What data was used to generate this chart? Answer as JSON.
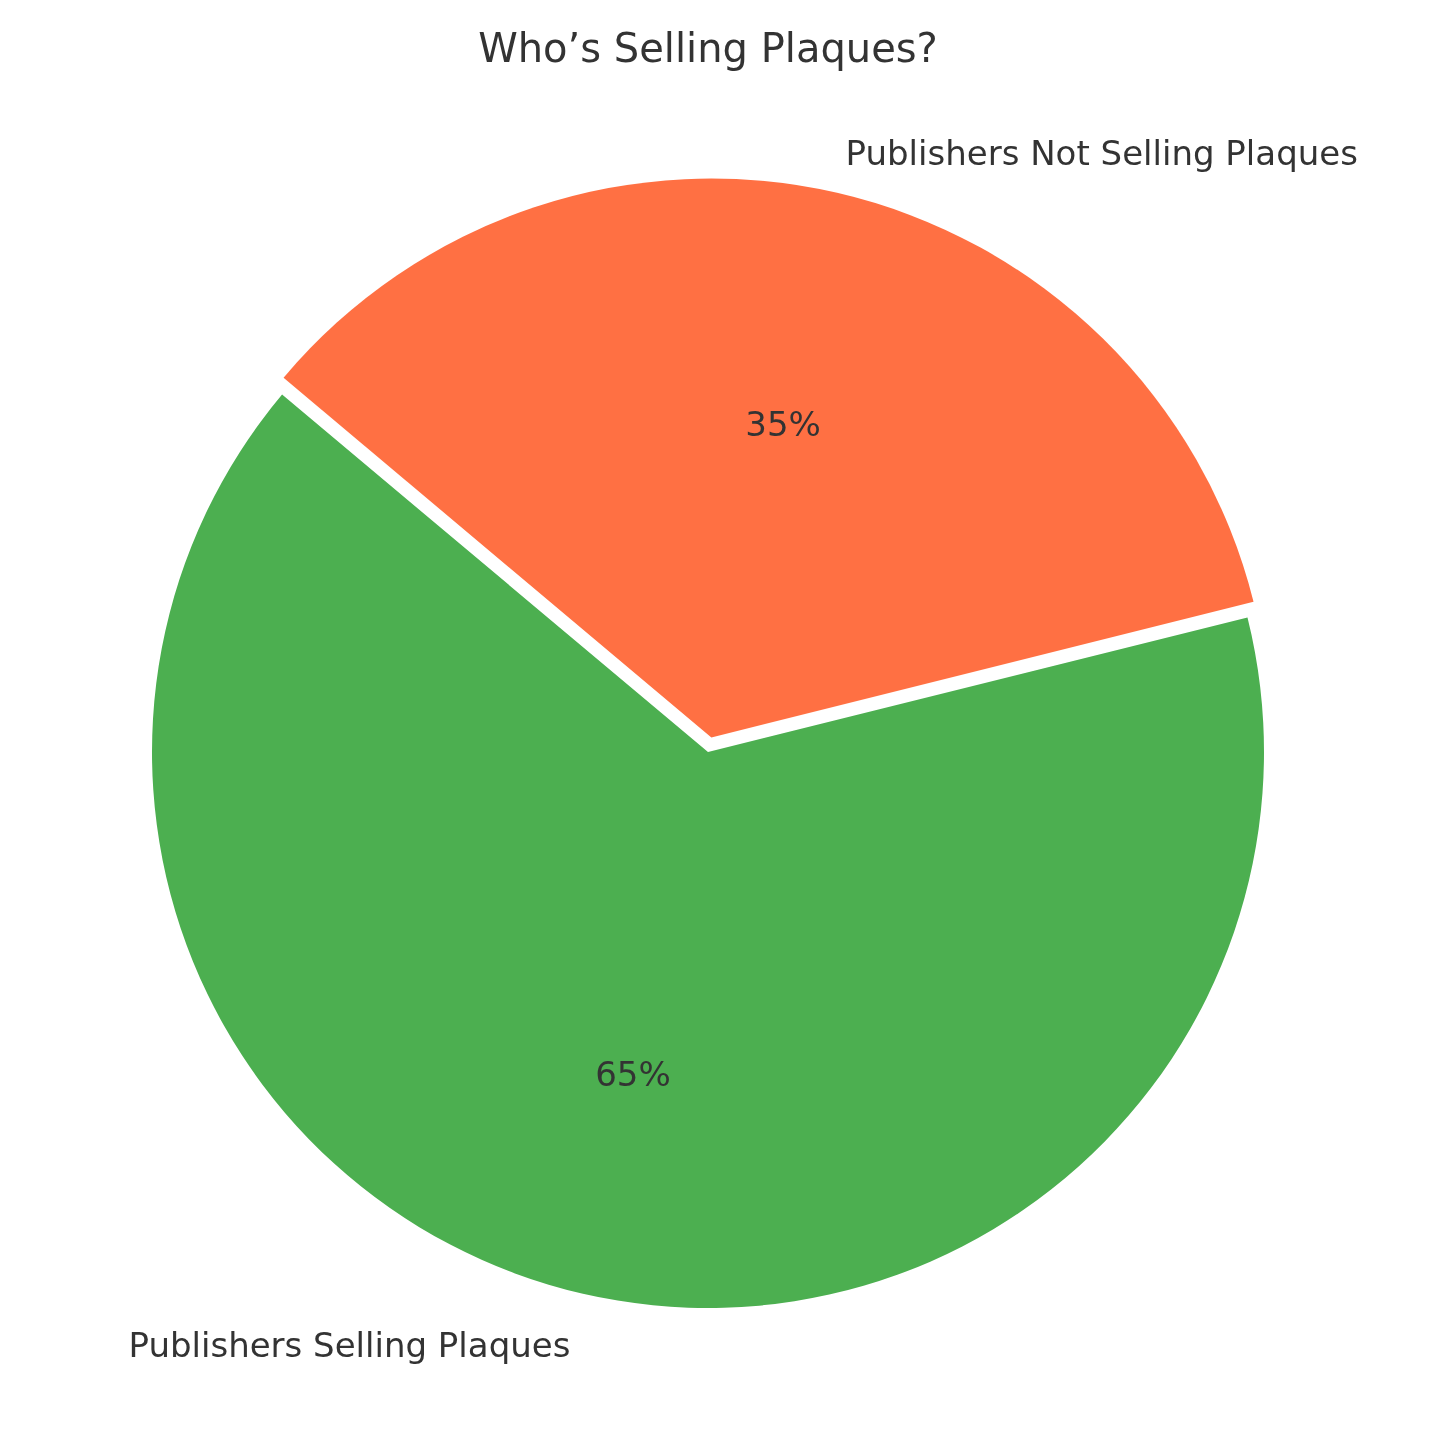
{
  "chart_data": {
    "type": "pie",
    "title": "Who’s Selling Plaques?",
    "categories": [
      "Publishers Selling Plaques",
      "Publishers Not Selling Plaques"
    ],
    "values": [
      65,
      35
    ],
    "colors": [
      "#4caf50",
      "#ff7043"
    ],
    "value_labels": [
      "65%",
      "35%"
    ],
    "legend": false
  }
}
